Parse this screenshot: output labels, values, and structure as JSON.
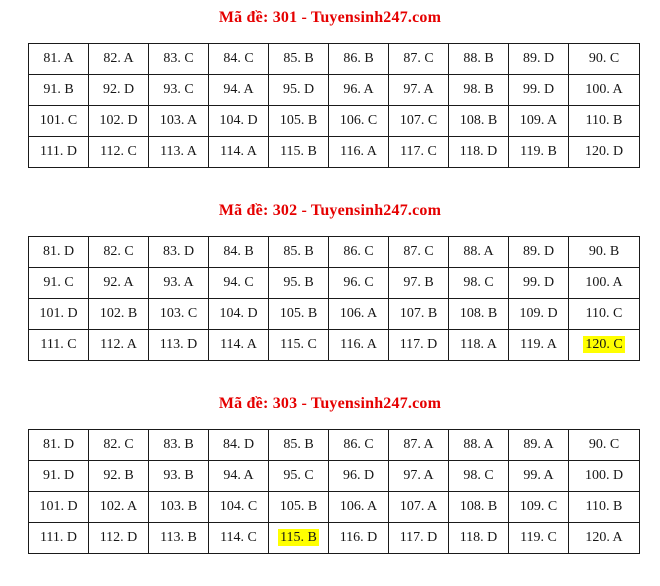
{
  "colors": {
    "title_red": "#e50000",
    "cell_text": "#161616",
    "border": "#1a1a1a",
    "highlight_yellow": "#ffff00",
    "page_background": "#ffffff"
  },
  "sections": [
    {
      "exam_code": "301",
      "title": "Mã đề: 301 - Tuyensinh247.com",
      "rows": [
        [
          "81. A",
          "82. A",
          "83. C",
          "84. C",
          "85. B",
          "86. B",
          "87. C",
          "88. B",
          "89. D",
          "90. C"
        ],
        [
          "91. B",
          "92. D",
          "93. C",
          "94. A",
          "95. D",
          "96. A",
          "97. A",
          "98. B",
          "99. D",
          "100. A"
        ],
        [
          "101. C",
          "102. D",
          "103. A",
          "104. D",
          "105. B",
          "106. C",
          "107. C",
          "108. B",
          "109. A",
          "110. B"
        ],
        [
          "111. D",
          "112. C",
          "113. A",
          "114. A",
          "115. B",
          "116. A",
          "117. C",
          "118. D",
          "119. B",
          "120. D"
        ]
      ],
      "highlighted_cells": []
    },
    {
      "exam_code": "302",
      "title": "Mã đề: 302 - Tuyensinh247.com",
      "rows": [
        [
          "81. D",
          "82. C",
          "83. D",
          "84. B",
          "85. B",
          "86. C",
          "87. C",
          "88. A",
          "89. D",
          "90. B"
        ],
        [
          "91. C",
          "92. A",
          "93. A",
          "94. C",
          "95. B",
          "96. C",
          "97. B",
          "98. C",
          "99. D",
          "100. A"
        ],
        [
          "101. D",
          "102. B",
          "103. C",
          "104. D",
          "105. B",
          "106. A",
          "107. B",
          "108. B",
          "109. D",
          "110. C"
        ],
        [
          "111. C",
          "112. A",
          "113. D",
          "114. A",
          "115. C",
          "116. A",
          "117. D",
          "118. A",
          "119. A",
          "120. C"
        ]
      ],
      "highlighted_cells": [
        "120. C"
      ]
    },
    {
      "exam_code": "303",
      "title": "Mã đề: 303 - Tuyensinh247.com",
      "rows": [
        [
          "81. D",
          "82. C",
          "83. B",
          "84. D",
          "85. B",
          "86. C",
          "87. A",
          "88. A",
          "89. A",
          "90. C"
        ],
        [
          "91. D",
          "92. B",
          "93. B",
          "94. A",
          "95. C",
          "96. D",
          "97. A",
          "98. C",
          "99. A",
          "100. D"
        ],
        [
          "101. D",
          "102. A",
          "103. B",
          "104. C",
          "105. B",
          "106. A",
          "107. A",
          "108. B",
          "109. C",
          "110. B"
        ],
        [
          "111. D",
          "112. D",
          "113. B",
          "114. C",
          "115. B",
          "116. D",
          "117. D",
          "118. D",
          "119. C",
          "120. A"
        ]
      ],
      "highlighted_cells": [
        "115. B"
      ]
    }
  ]
}
